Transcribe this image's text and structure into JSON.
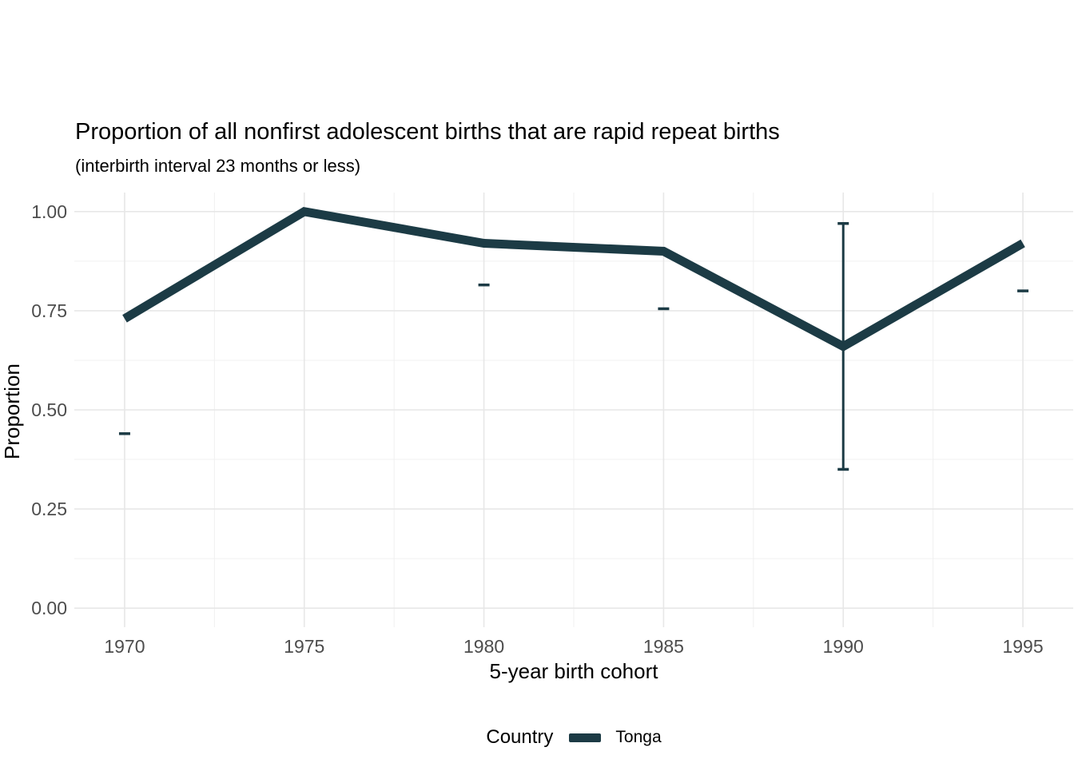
{
  "title": "Proportion of all nonfirst adolescent births that are rapid repeat births",
  "subtitle": "(interbirth interval 23 months or less)",
  "x_axis_title": "5-year birth cohort",
  "y_axis_title": "Proportion",
  "legend": {
    "title": "Country",
    "entries": [
      {
        "label": "Tonga",
        "color": "#1c3b45"
      }
    ]
  },
  "colors": {
    "series_line": "#1c3b45",
    "grid_major": "#e7e7e7",
    "grid_minor": "#f0f0f0",
    "tick_label_text": "#4d4d4d",
    "text": "#000000",
    "background": "#ffffff"
  },
  "chart_data": {
    "type": "line",
    "title": "Proportion of all nonfirst adolescent births that are rapid repeat births",
    "subtitle": "(interbirth interval 23 months or less)",
    "xlabel": "5-year birth cohort",
    "ylabel": "Proportion",
    "x": [
      1970,
      1975,
      1980,
      1985,
      1990,
      1995
    ],
    "x_tick_labels": [
      "1970",
      "1975",
      "1980",
      "1985",
      "1990",
      "1995"
    ],
    "y_ticks": [
      0.0,
      0.25,
      0.5,
      0.75,
      1.0
    ],
    "y_tick_labels": [
      "0.00",
      "0.25",
      "0.50",
      "0.75",
      "1.00"
    ],
    "y_minor_ticks": [
      0.125,
      0.375,
      0.625,
      0.875
    ],
    "x_minor_ticks": [
      1972.5,
      1977.5,
      1982.5,
      1987.5,
      1992.5
    ],
    "xlim": [
      1968.6,
      1996.4
    ],
    "ylim": [
      -0.048,
      1.048
    ],
    "grid": true,
    "legend_position": "bottom",
    "series": [
      {
        "name": "Tonga",
        "color": "#1c3b45",
        "values": [
          0.73,
          1.0,
          0.92,
          0.9,
          0.66,
          0.92
        ]
      }
    ],
    "error_bars": [
      {
        "x": 1970,
        "low": 0.44,
        "high": null
      },
      {
        "x": 1980,
        "low": 0.815,
        "high": null
      },
      {
        "x": 1985,
        "low": 0.755,
        "high": null
      },
      {
        "x": 1990,
        "low": 0.35,
        "high": 0.97
      },
      {
        "x": 1995,
        "low": 0.8,
        "high": null
      }
    ]
  }
}
